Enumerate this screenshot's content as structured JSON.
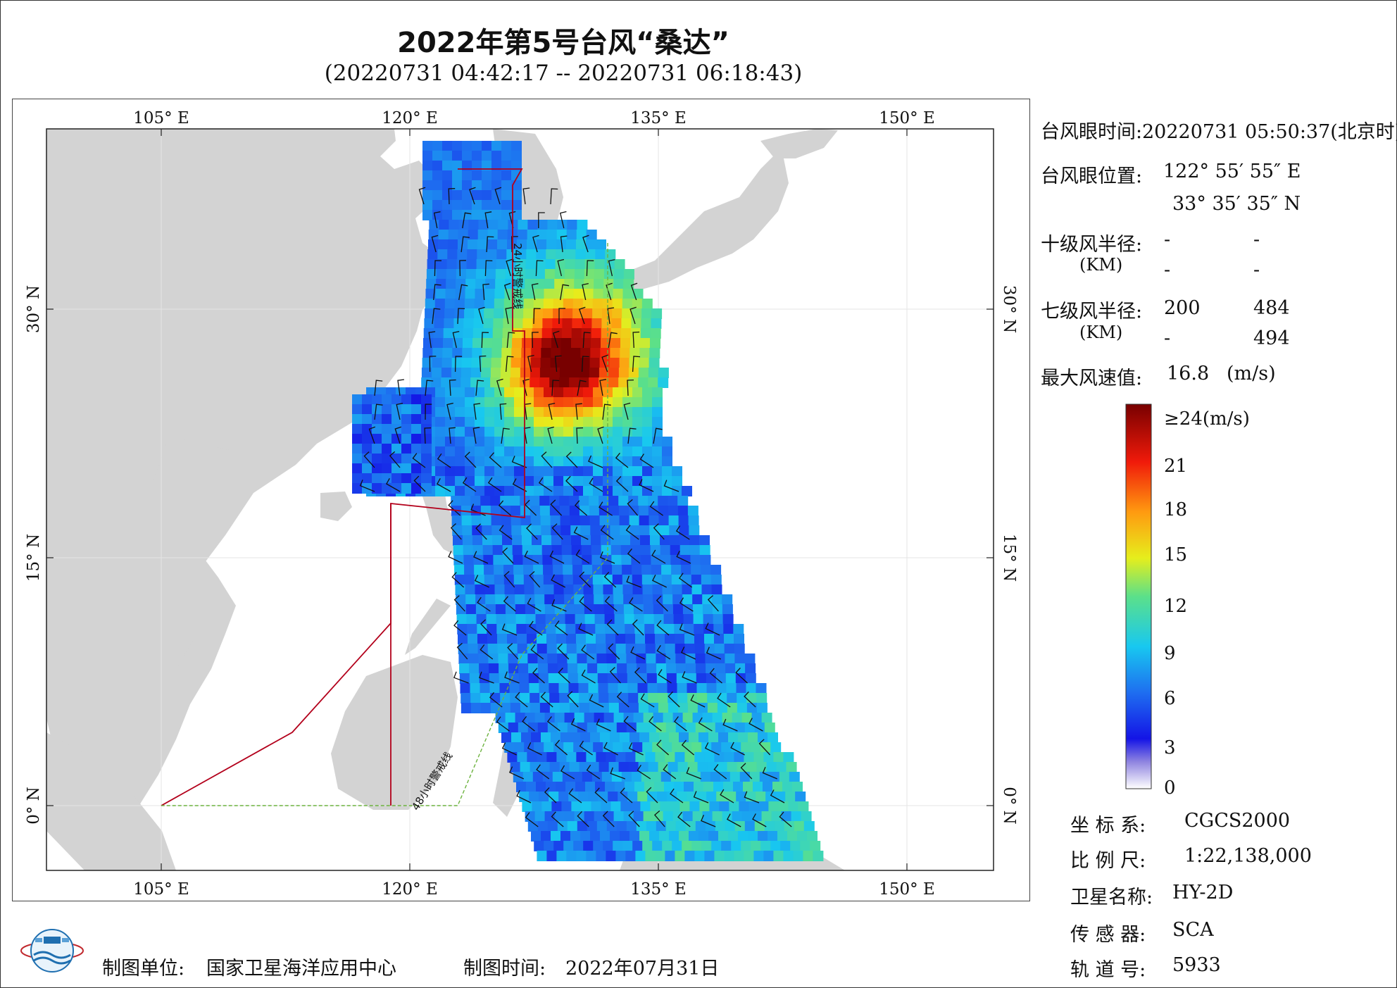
{
  "header": {
    "title": "2022年第5号台风“桑达”",
    "subtitle": "(20220731 04:42:17 -- 20220731 06:18:43)"
  },
  "map": {
    "lon_labels": [
      "105° E",
      "120° E",
      "135° E",
      "150° E"
    ],
    "lat_labels": [
      "30° N",
      "15° N",
      "0° N"
    ],
    "warning_24h_label": "24小时警戒线",
    "warning_48h_label": "48小时警戒线",
    "colors": {
      "land": "#d3d3d3",
      "ocean": "#ffffff",
      "warning_24h": "#b3001b",
      "warning_48h": "#6db33f"
    }
  },
  "info": {
    "eye_time_label": "台风眼时间:",
    "eye_time_value": "20220731 05:50:37(北京时)",
    "eye_pos_label": "台风眼位置:",
    "eye_lon": "122° 55′ 55″ E",
    "eye_lat": "33° 35′ 35″ N",
    "r10_label": "十级风半径:",
    "km_label": "(KM)",
    "r10_values": [
      "-",
      "-",
      "-",
      "-"
    ],
    "r7_label": "七级风半径:",
    "r7_values": [
      "200",
      "484",
      "-",
      "494"
    ],
    "max_wind_label": "最大风速值:",
    "max_wind_value": "16.8",
    "max_wind_unit": "(m/s)"
  },
  "colorbar": {
    "top_label": "≥24(m/s)",
    "ticks": [
      "21",
      "18",
      "15",
      "12",
      "9",
      "6",
      "3",
      "0"
    ]
  },
  "meta": {
    "crs_label": "坐 标 系:",
    "crs_value": "CGCS2000",
    "scale_label": "比 例 尺:",
    "scale_value": "1:22,138,000",
    "sat_label": "卫星名称:",
    "sat_value": "HY-2D",
    "sensor_label": "传 感 器:",
    "sensor_value": "SCA",
    "orbit_label": "轨 道 号:",
    "orbit_value": "5933"
  },
  "footer": {
    "org_label": "制图单位:",
    "org_value": "国家卫星海洋应用中心",
    "date_label": "制图时间:",
    "date_value": "2022年07月31日"
  }
}
